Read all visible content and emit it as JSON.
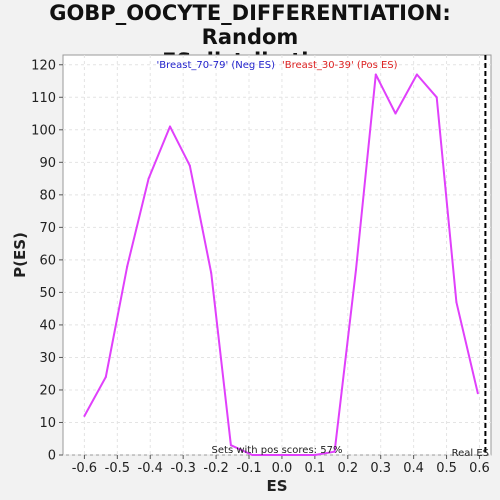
{
  "chart_data": {
    "type": "line",
    "title_line1": "GOBP_OOCYTE_DIFFERENTIATION: Random",
    "title_line2": "ES distribution",
    "xlabel": "ES",
    "ylabel": "P(ES)",
    "xlim": [
      -0.665,
      0.635
    ],
    "ylim": [
      0,
      123
    ],
    "xticks": [
      -0.6,
      -0.5,
      -0.4,
      -0.3,
      -0.2,
      -0.1,
      0.0,
      0.1,
      0.2,
      0.3,
      0.4,
      0.5,
      0.6
    ],
    "xtick_labels": [
      "-0.6",
      "-0.5",
      "-0.4",
      "-0.3",
      "-0.2",
      "-0.1",
      "0.0",
      "0.1",
      "0.2",
      "0.3",
      "0.4",
      "0.5",
      "0.6"
    ],
    "yticks": [
      0,
      10,
      20,
      30,
      40,
      50,
      60,
      70,
      80,
      90,
      100,
      110,
      120
    ],
    "grid": true,
    "legend": {
      "neg_label": "'Breast_70-79' (Neg ES)",
      "neg_color": "#2222cc",
      "pos_label": "'Breast_30-39' (Pos ES)",
      "pos_color": "#dd2222",
      "placement": "top-center"
    },
    "series": [
      {
        "color": "#e040fb",
        "x": [
          -0.6,
          -0.535,
          -0.47,
          -0.405,
          -0.34,
          -0.28,
          -0.215,
          -0.155,
          -0.09,
          -0.03,
          0.035,
          0.1,
          0.16,
          0.225,
          0.285,
          0.345,
          0.41,
          0.47,
          0.53,
          0.595
        ],
        "y": [
          12,
          24,
          58,
          85,
          101,
          89,
          56,
          3,
          0,
          0,
          0,
          0,
          1,
          57,
          117,
          105,
          117,
          110,
          47,
          19
        ]
      }
    ],
    "real_es": {
      "x": 0.618,
      "label": "Real ES"
    },
    "annotation": "Sets with pos scores: 57%"
  }
}
